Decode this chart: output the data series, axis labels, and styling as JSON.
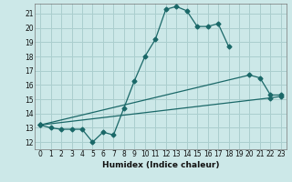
{
  "title": "",
  "xlabel": "Humidex (Indice chaleur)",
  "ylabel": "",
  "background_color": "#cce8e8",
  "grid_color": "#aacece",
  "line_color": "#1a6868",
  "xlim": [
    -0.5,
    23.5
  ],
  "ylim": [
    11.5,
    21.7
  ],
  "xticks": [
    0,
    1,
    2,
    3,
    4,
    5,
    6,
    7,
    8,
    9,
    10,
    11,
    12,
    13,
    14,
    15,
    16,
    17,
    18,
    19,
    20,
    21,
    22,
    23
  ],
  "yticks": [
    12,
    13,
    14,
    15,
    16,
    17,
    18,
    19,
    20,
    21
  ],
  "series1_x": [
    0,
    1,
    2,
    3,
    4,
    5,
    6,
    7,
    8,
    9,
    10,
    11,
    12,
    13,
    14,
    15,
    16,
    17,
    18
  ],
  "series1_y": [
    13.2,
    13.0,
    12.9,
    12.9,
    12.9,
    12.0,
    12.7,
    12.5,
    14.4,
    16.3,
    18.0,
    19.2,
    21.3,
    21.5,
    21.2,
    20.1,
    20.1,
    20.3,
    18.7
  ],
  "series2_x": [
    0,
    20,
    21,
    22,
    23
  ],
  "series2_y": [
    13.2,
    16.7,
    16.5,
    15.3,
    15.3
  ],
  "series3_x": [
    0,
    22,
    23
  ],
  "series3_y": [
    13.2,
    15.1,
    15.2
  ]
}
